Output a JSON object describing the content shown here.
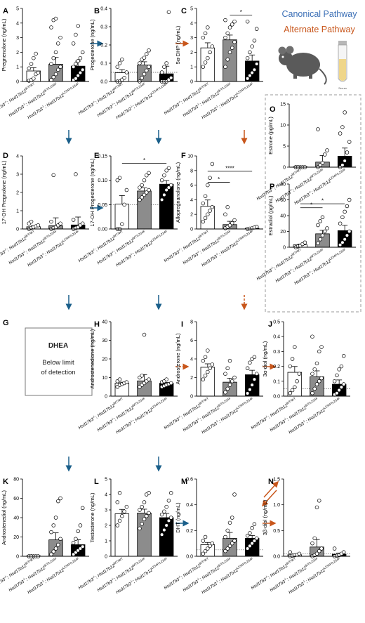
{
  "legend": {
    "canonical": "Canonical Pathway",
    "alternate": "Alternate Pathway",
    "tube_label": "Serum"
  },
  "colors": {
    "canonical": "#1a5f8a",
    "alternate": "#c8561b",
    "legend_canonical_text": "#3b6fb6",
    "legend_alternate_text": "#c8561b",
    "bar_wt": "#ffffff",
    "bar_het": "#8c8c8c",
    "bar_hom": "#000000",
    "mouse": "#5a5a5a",
    "tube_fill": "#efd68a"
  },
  "genotypes": [
    {
      "prefix": "Hsd17b3",
      "prefix_sup": "-/-",
      "suffix": "; Hsd17b12",
      "suffix_sup": "WT/WT"
    },
    {
      "prefix": "Hsd17b3",
      "prefix_sup": "-/-",
      "suffix": "; Hsd17b12",
      "suffix_sup": "WT/L234F"
    },
    {
      "prefix": "Hsd17b3",
      "prefix_sup": "-/-",
      "suffix": "; Hsd17b12",
      "suffix_sup": "L234F/L234F"
    }
  ],
  "dhea_box": {
    "title": "DHEA",
    "line1": "Below limit",
    "line2": "of detection"
  },
  "chart_data": [
    {
      "panel": "A",
      "type": "bar",
      "ylabel": "Pregnenolone (ng/mL)",
      "ylim": [
        0,
        5
      ],
      "yticks": [
        "0",
        "1",
        "2",
        "3",
        "4",
        "5"
      ],
      "values": [
        0.72,
        1.18,
        1.05
      ],
      "points": [
        [
          0.05,
          0.1,
          0.2,
          0.5,
          0.6,
          0.9,
          1.2,
          1.6,
          1.9
        ],
        [
          0.1,
          0.3,
          0.5,
          0.8,
          1.0,
          1.2,
          1.6,
          2.0,
          2.6,
          3.0,
          3.7,
          4.2,
          4.3
        ],
        [
          0.1,
          0.2,
          0.4,
          0.6,
          0.8,
          1.0,
          1.2,
          1.4,
          1.6,
          2.0,
          2.6,
          3.2,
          3.8
        ]
      ],
      "sig": []
    },
    {
      "panel": "B",
      "type": "bar",
      "ylabel": "Progesterone (ng/mL)",
      "ylim": [
        0,
        0.4
      ],
      "yticks": [
        "0.0",
        "0.1",
        "0.2",
        "0.3",
        "0.4"
      ],
      "values": [
        0.048,
        0.09,
        0.042
      ],
      "dotted": 0.05,
      "points": [
        [
          0.0,
          0.0,
          0.01,
          0.02,
          0.05,
          0.08,
          0.1,
          0.12
        ],
        [
          0.0,
          0.02,
          0.04,
          0.06,
          0.08,
          0.1,
          0.12,
          0.13,
          0.15,
          0.17
        ],
        [
          0.0,
          0.0,
          0.0,
          0.01,
          0.02,
          0.05,
          0.08,
          0.1,
          0.38
        ]
      ],
      "sig": []
    },
    {
      "panel": "C",
      "type": "bar",
      "ylabel": "5α-DHP (ng/mL)",
      "ylim": [
        0,
        5
      ],
      "yticks": [
        "0",
        "1",
        "2",
        "3",
        "4",
        "5"
      ],
      "values": [
        2.3,
        2.85,
        1.4
      ],
      "points": [
        [
          1.0,
          1.3,
          1.6,
          2.0,
          2.4,
          3.0,
          3.3,
          3.7
        ],
        [
          1.0,
          1.5,
          2.0,
          2.3,
          2.7,
          3.0,
          3.3,
          3.7,
          3.9,
          4.1,
          4.2
        ],
        [
          0.2,
          0.4,
          0.6,
          0.8,
          1.2,
          1.6,
          2.0,
          2.4,
          2.8,
          3.6,
          4.1
        ]
      ],
      "sig": [
        {
          "from": 1,
          "to": 2,
          "label": "*",
          "value": 4.55
        }
      ]
    },
    {
      "panel": "D",
      "type": "bar",
      "ylabel": "17-OH Pregnolone (ng/mL)",
      "ylim": [
        0,
        4
      ],
      "yticks": [
        "0",
        "1",
        "2",
        "3",
        "4"
      ],
      "values": [
        0.12,
        0.18,
        0.22
      ],
      "points": [
        [
          0.0,
          0.05,
          0.1,
          0.15,
          0.2,
          0.3,
          0.4
        ],
        [
          0.0,
          0.05,
          0.1,
          0.2,
          0.3,
          0.4,
          2.95
        ],
        [
          0.0,
          0.05,
          0.1,
          0.2,
          0.3,
          0.5,
          3.0
        ]
      ],
      "sig": []
    },
    {
      "panel": "E",
      "type": "bar",
      "ylabel": "17-OH Progesterone (ng/mL)",
      "ylim": [
        0,
        0.15
      ],
      "yticks": [
        "0.00",
        "0.05",
        "0.10",
        "0.15"
      ],
      "values": [
        0.051,
        0.078,
        0.092
      ],
      "dotted": 0.05,
      "points": [
        [
          0.0,
          0.0,
          0.01,
          0.05,
          0.08,
          0.1,
          0.105
        ],
        [
          0.06,
          0.065,
          0.07,
          0.075,
          0.08,
          0.085,
          0.09,
          0.1,
          0.11,
          0.115
        ],
        [
          0.06,
          0.07,
          0.08,
          0.085,
          0.09,
          0.1,
          0.11,
          0.12,
          0.125
        ]
      ],
      "sig": [
        {
          "from": 0,
          "to": 2,
          "label": "*",
          "value": 0.135
        }
      ]
    },
    {
      "panel": "F",
      "type": "bar",
      "ylabel": "Allopregnanolone (ng/mL)",
      "ylim": [
        0,
        10
      ],
      "yticks": [
        "0",
        "2",
        "4",
        "6",
        "8",
        "10"
      ],
      "values": [
        3.1,
        0.6,
        0.1
      ],
      "points": [
        [
          1.0,
          1.5,
          2.0,
          2.5,
          3.0,
          3.5,
          4.5,
          6.0,
          7.0,
          8.9
        ],
        [
          0.1,
          0.3,
          0.5,
          0.8,
          1.2,
          2.0,
          3.0
        ],
        [
          0.0,
          0.05,
          0.1,
          0.2,
          0.3
        ]
      ],
      "sig": [
        {
          "from": 0,
          "to": 1,
          "label": "*",
          "value": 6.4
        },
        {
          "from": 0,
          "to": 2,
          "label": "****",
          "value": 7.9
        }
      ]
    },
    {
      "panel": "O",
      "type": "bar",
      "ylabel": "Estrone (pg/mL)",
      "ylim": [
        0,
        15
      ],
      "yticks": [
        "0",
        "5",
        "10",
        "15"
      ],
      "values": [
        0.1,
        1.2,
        2.6
      ],
      "points": [
        [
          0,
          0,
          0,
          0,
          0,
          0,
          0
        ],
        [
          0,
          0.5,
          1.0,
          3.0,
          4.0,
          9.0
        ],
        [
          0,
          0.5,
          1.5,
          3.5,
          6.0,
          8.0,
          9.5,
          13.0
        ]
      ],
      "sig": []
    },
    {
      "panel": "P",
      "type": "bar",
      "ylabel": "Estradiol (pg/mL)",
      "ylim": [
        0,
        80
      ],
      "yticks": [
        "0",
        "20",
        "40",
        "60",
        "80"
      ],
      "values": [
        3,
        17,
        21
      ],
      "points": [
        [
          0,
          1,
          2,
          4,
          6
        ],
        [
          5,
          10,
          15,
          20,
          24,
          28,
          33,
          38
        ],
        [
          3,
          6,
          10,
          15,
          20,
          30,
          38,
          45,
          52,
          60
        ]
      ],
      "sig": [
        {
          "from": 0,
          "to": 1,
          "label": "*",
          "value": 50
        },
        {
          "from": 0,
          "to": 2,
          "label": "*",
          "value": 55
        }
      ]
    },
    {
      "panel": "H",
      "type": "bar",
      "ylabel": "Androstenedione (ng/mL)",
      "ylim": [
        0,
        40
      ],
      "yticks": [
        "0",
        "10",
        "20",
        "30",
        "40"
      ],
      "values": [
        7.0,
        8.2,
        6.9
      ],
      "points": [
        [
          5,
          6,
          6.5,
          7,
          7.5,
          8,
          9
        ],
        [
          5,
          6,
          7,
          8,
          9,
          10,
          11,
          33
        ],
        [
          5,
          5.5,
          6,
          6.5,
          7,
          7.5,
          8,
          9
        ]
      ],
      "sig": []
    },
    {
      "panel": "I",
      "type": "bar",
      "ylabel": "Androsterone (ng/mL)",
      "ylim": [
        0,
        8
      ],
      "yticks": [
        "0",
        "2",
        "4",
        "6",
        "8"
      ],
      "values": [
        3.1,
        1.5,
        2.3
      ],
      "points": [
        [
          1.8,
          2.2,
          2.6,
          3.0,
          3.4,
          3.8,
          4.2,
          4.9
        ],
        [
          0.4,
          0.8,
          1.2,
          1.6,
          2.0,
          2.4,
          3.0,
          3.8
        ],
        [
          0.3,
          0.7,
          1.2,
          1.8,
          2.4,
          3.0,
          3.6,
          4.0,
          4.2
        ]
      ],
      "sig": []
    },
    {
      "panel": "J",
      "type": "bar",
      "ylabel": "3α-diol (ng/mL)",
      "ylim": [
        0,
        0.5
      ],
      "yticks": [
        "0.0",
        "0.1",
        "0.2",
        "0.3",
        "0.4",
        "0.5"
      ],
      "values": [
        0.16,
        0.13,
        0.08
      ],
      "dotted": 0.05,
      "points": [
        [
          0.02,
          0.04,
          0.06,
          0.1,
          0.15,
          0.2,
          0.25,
          0.33
        ],
        [
          0.02,
          0.05,
          0.08,
          0.1,
          0.12,
          0.15,
          0.18,
          0.22,
          0.3,
          0.33,
          0.4
        ],
        [
          0.01,
          0.02,
          0.04,
          0.06,
          0.08,
          0.1,
          0.14,
          0.18,
          0.2,
          0.27
        ]
      ],
      "sig": []
    },
    {
      "panel": "K",
      "type": "bar",
      "ylabel": "Androstenediol (ng/mL)",
      "ylim": [
        0,
        80
      ],
      "yticks": [
        "0",
        "20",
        "40",
        "60",
        "80"
      ],
      "values": [
        0.5,
        17,
        12
      ],
      "points": [
        [
          0,
          0,
          0,
          0,
          0,
          0,
          0
        ],
        [
          2,
          5,
          8,
          12,
          18,
          25,
          32,
          40,
          57,
          60
        ],
        [
          2,
          4,
          6,
          8,
          10,
          14,
          18,
          26,
          32,
          50
        ]
      ],
      "sig": []
    },
    {
      "panel": "L",
      "type": "bar",
      "ylabel": "Testosterone (ng/mL)",
      "ylim": [
        0,
        5
      ],
      "yticks": [
        "0",
        "1",
        "2",
        "3",
        "4",
        "5"
      ],
      "values": [
        2.75,
        2.8,
        2.5
      ],
      "points": [
        [
          2.0,
          2.3,
          2.6,
          2.9,
          3.2,
          3.5,
          4.1
        ],
        [
          1.8,
          2.1,
          2.4,
          2.6,
          2.8,
          3.0,
          3.2,
          3.5,
          4.0,
          4.1
        ],
        [
          1.4,
          1.7,
          2.0,
          2.3,
          2.5,
          2.7,
          2.9,
          3.2,
          3.6,
          4.1
        ]
      ],
      "sig": []
    },
    {
      "panel": "M",
      "type": "bar",
      "ylabel": "DHT (ng/mL)",
      "ylim": [
        0,
        0.6
      ],
      "yticks": [
        "0.0",
        "0.2",
        "0.4",
        "0.6"
      ],
      "values": [
        0.09,
        0.14,
        0.14
      ],
      "dotted": 0.05,
      "points": [
        [
          0.02,
          0.04,
          0.06,
          0.08,
          0.1,
          0.12,
          0.15
        ],
        [
          0.04,
          0.06,
          0.08,
          0.1,
          0.12,
          0.15,
          0.2,
          0.26,
          0.3,
          0.48
        ],
        [
          0.06,
          0.08,
          0.1,
          0.12,
          0.14,
          0.16,
          0.18,
          0.22,
          0.25
        ]
      ],
      "sig": []
    },
    {
      "panel": "N",
      "type": "bar",
      "ylabel": "3β-diol (ng/mL)",
      "ylim": [
        0,
        1.5
      ],
      "yticks": [
        "0.0",
        "0.5",
        "1.0",
        "1.5"
      ],
      "values": [
        0.03,
        0.18,
        0.04
      ],
      "dotted": 0.05,
      "points": [
        [
          0.0,
          0.01,
          0.02,
          0.03,
          0.05,
          0.08
        ],
        [
          0.0,
          0.02,
          0.05,
          0.1,
          0.15,
          0.25,
          0.35,
          0.95,
          1.08
        ],
        [
          0.0,
          0.01,
          0.02,
          0.05,
          0.08,
          0.15
        ]
      ],
      "sig": []
    }
  ]
}
